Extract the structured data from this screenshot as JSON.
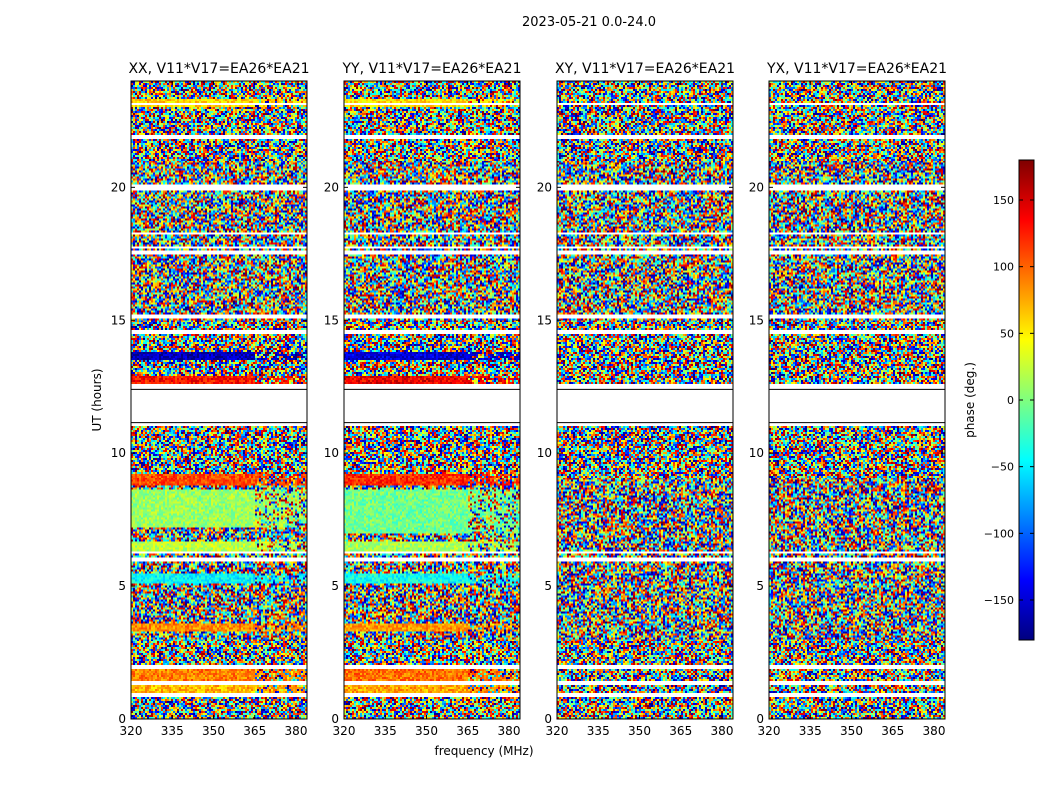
{
  "chart_data": {
    "type": "heatmap",
    "suptitle": "2023-05-21 0.0-24.0",
    "xlabel": "frequency (MHz)",
    "ylabel": "UT (hours)",
    "xlim": [
      320,
      384
    ],
    "ylim": [
      0,
      24
    ],
    "xticks": [
      320,
      335,
      350,
      365,
      380
    ],
    "yticks": [
      0,
      5,
      10,
      15,
      20
    ],
    "colorbar": {
      "label": "phase (deg.)",
      "range": [
        -180,
        180
      ],
      "ticks": [
        150,
        100,
        50,
        0,
        -50,
        -100,
        -150
      ],
      "tick_labels": [
        "150",
        "100",
        "50",
        "0",
        "−50",
        "−100",
        "−150"
      ],
      "colormap": "jet",
      "colors": [
        "#00007f",
        "#0000ff",
        "#007fff",
        "#00ffff",
        "#7fff7f",
        "#ffff00",
        "#ff7f00",
        "#ff0000",
        "#7f0000"
      ]
    },
    "flagged_ut_ranges": [
      [
        12.4,
        12.6
      ],
      [
        11.0,
        11.15
      ],
      [
        0.85,
        1.0
      ],
      [
        1.3,
        1.4
      ],
      [
        1.9,
        2.0
      ],
      [
        5.95,
        6.1
      ],
      [
        6.2,
        6.3
      ],
      [
        14.5,
        14.6
      ],
      [
        15.1,
        15.2
      ],
      [
        17.5,
        17.6
      ],
      [
        17.7,
        17.8
      ],
      [
        18.2,
        18.3
      ],
      [
        19.9,
        20.1
      ],
      [
        21.8,
        21.95
      ],
      [
        23.1,
        23.2
      ]
    ],
    "panels": [
      {
        "title": "XX, V11*V17=EA26*EA21",
        "bands": [
          {
            "ut": [
              12.6,
              12.9
            ],
            "phase": 130
          },
          {
            "ut": [
              8.8,
              9.2
            ],
            "phase": 110
          },
          {
            "ut": [
              7.2,
              8.6
            ],
            "phase": 10
          },
          {
            "ut": [
              6.3,
              6.7
            ],
            "phase": 20
          },
          {
            "ut": [
              5.1,
              5.5
            ],
            "phase": -45
          },
          {
            "ut": [
              3.3,
              3.6
            ],
            "phase": 85
          },
          {
            "ut": [
              1.4,
              1.9
            ],
            "phase": 90
          },
          {
            "ut": [
              1.0,
              1.3
            ],
            "phase": 70
          },
          {
            "ut": [
              13.5,
              13.8
            ],
            "phase": -160
          },
          {
            "ut": [
              23.0,
              23.3
            ],
            "phase": 60
          }
        ]
      },
      {
        "title": "YY, V11*V17=EA26*EA21",
        "bands": [
          {
            "ut": [
              12.6,
              12.9
            ],
            "phase": 140
          },
          {
            "ut": [
              8.8,
              9.2
            ],
            "phase": 120
          },
          {
            "ut": [
              7.0,
              8.6
            ],
            "phase": -5
          },
          {
            "ut": [
              6.3,
              6.7
            ],
            "phase": 15
          },
          {
            "ut": [
              5.1,
              5.5
            ],
            "phase": -40
          },
          {
            "ut": [
              3.3,
              3.6
            ],
            "phase": 80
          },
          {
            "ut": [
              1.4,
              1.9
            ],
            "phase": 95
          },
          {
            "ut": [
              1.0,
              1.3
            ],
            "phase": 75
          },
          {
            "ut": [
              13.5,
              13.8
            ],
            "phase": -150
          },
          {
            "ut": [
              23.0,
              23.3
            ],
            "phase": 55
          }
        ]
      },
      {
        "title": "XY, V11*V17=EA26*EA21",
        "bands": []
      },
      {
        "title": "YX, V11*V17=EA26*EA21",
        "bands": []
      }
    ]
  }
}
